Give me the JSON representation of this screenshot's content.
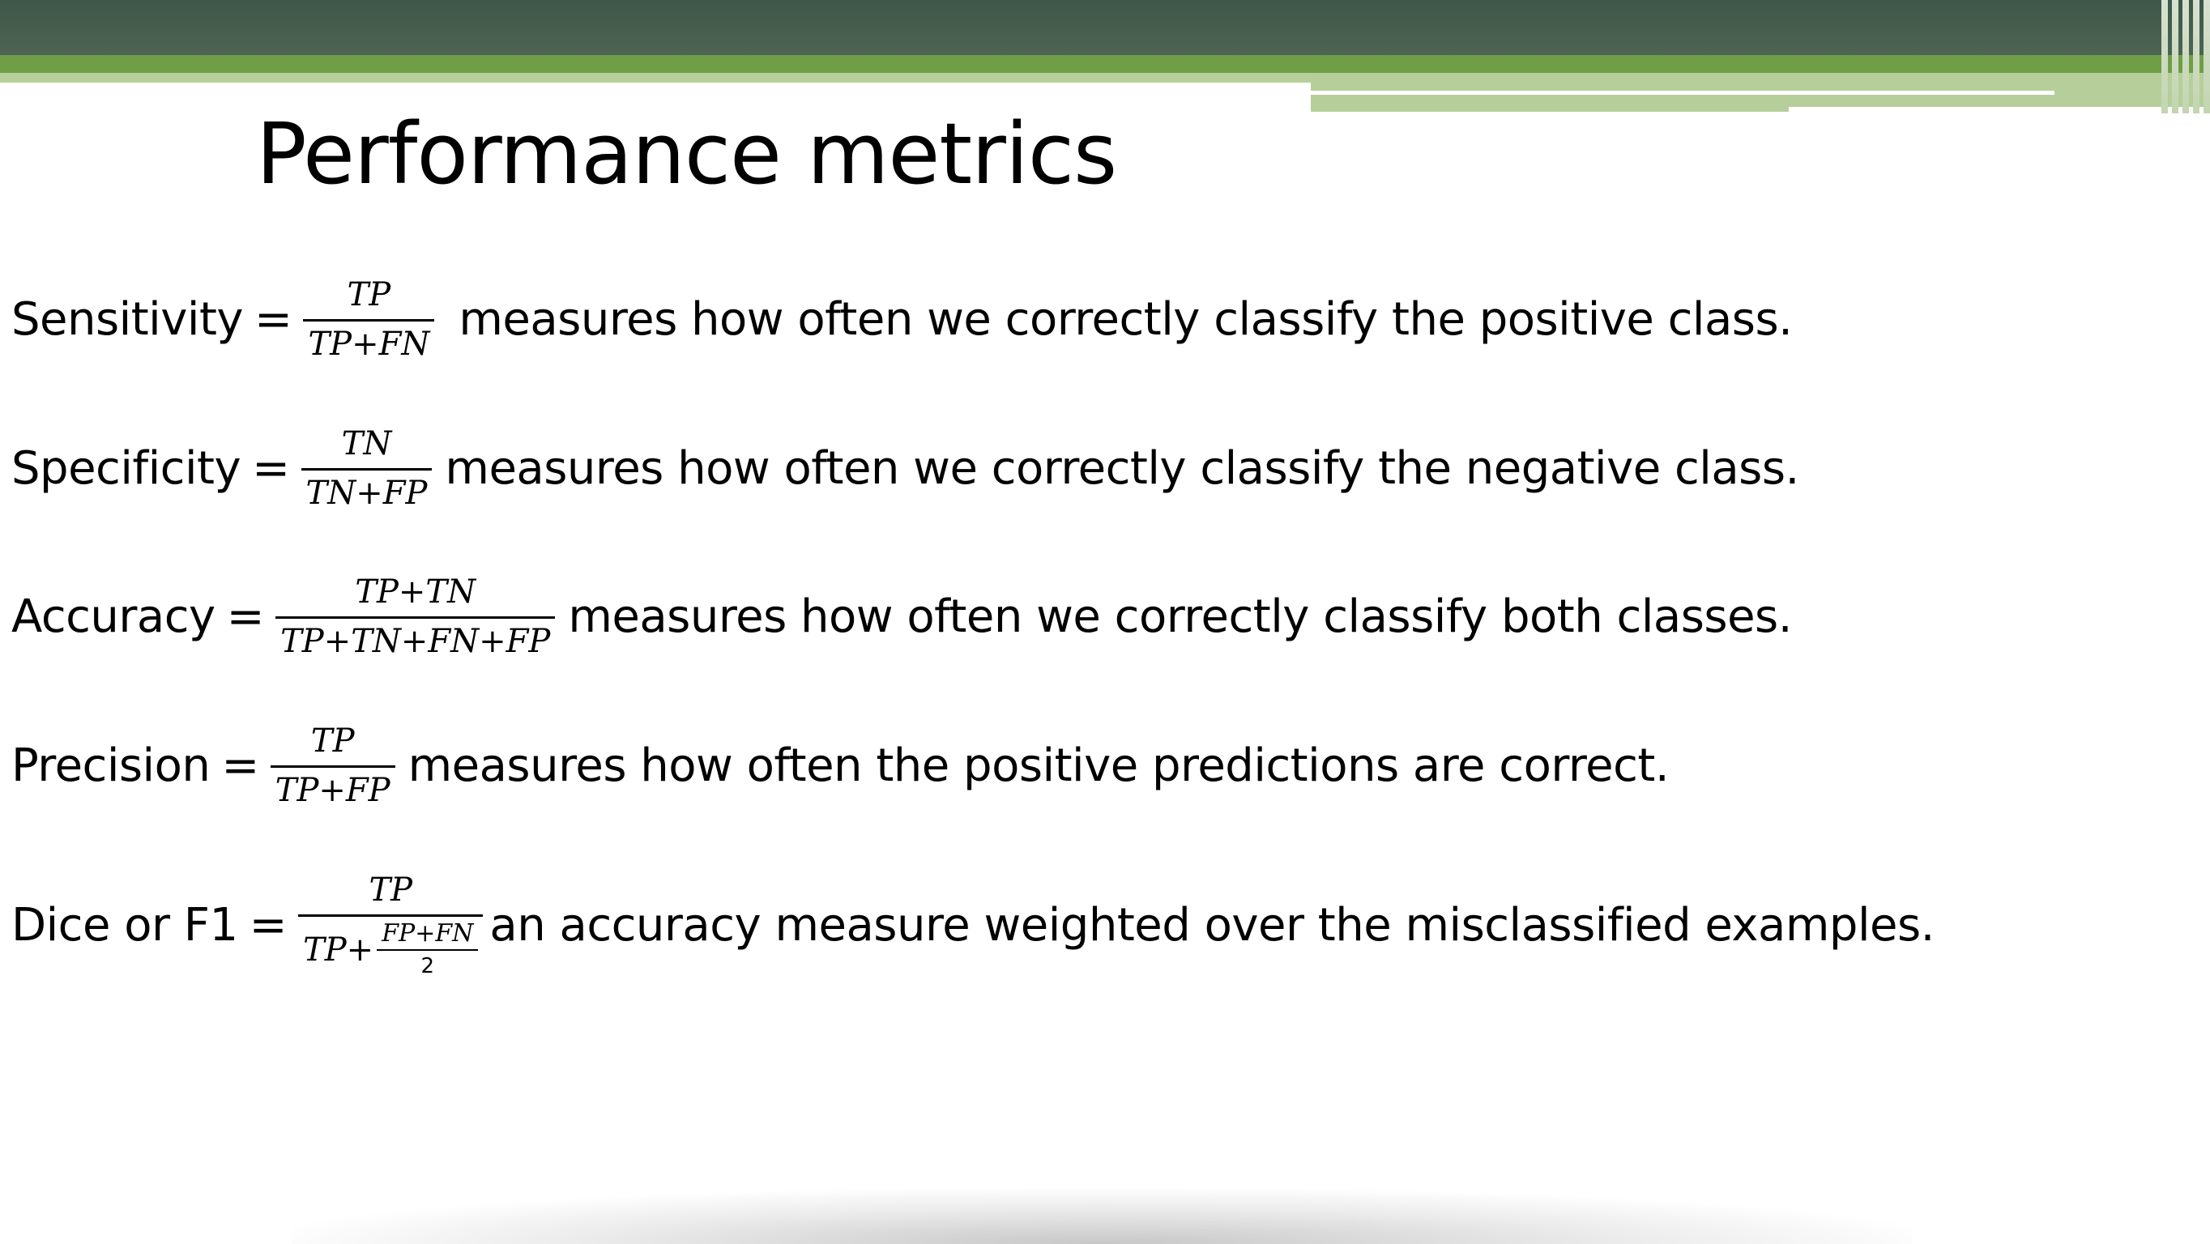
{
  "slide": {
    "title": "Performance metrics",
    "colors": {
      "header_dark": "#3e5748",
      "header_green": "#6f9e46",
      "header_light": "#b7d09a"
    },
    "metrics": [
      {
        "label": "Sensitivity",
        "equals": "=",
        "numerator": "TP",
        "denominator": "TP+FN",
        "description": "measures how often we correctly classify the positive class."
      },
      {
        "label": "Specificity",
        "equals": "=",
        "numerator": "TN",
        "denominator": "TN+FP",
        "description": "measures how often we correctly classify the negative class."
      },
      {
        "label": "Accuracy",
        "equals": "=",
        "numerator": "TP+TN",
        "denominator": "TP+TN+FN+FP",
        "description": "measures how often we correctly classify both classes."
      },
      {
        "label": "Precision",
        "equals": "=",
        "numerator": "TP",
        "denominator": "TP+FP",
        "description": "measures how often the positive predictions are correct."
      },
      {
        "label": "Dice or F1",
        "equals": "=",
        "numerator": "TP",
        "denominator_prefix": "TP+",
        "inner_numerator": "FP+FN",
        "inner_denominator": "2",
        "description": "an accuracy measure weighted over the misclassified examples."
      }
    ]
  }
}
